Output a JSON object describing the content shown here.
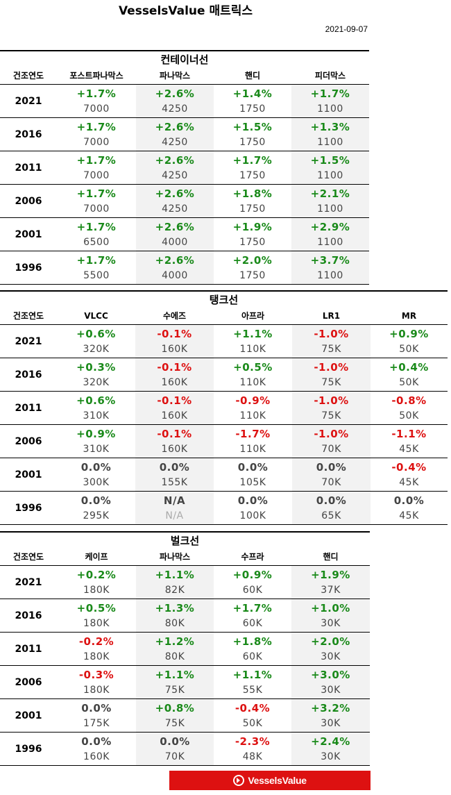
{
  "title": "VesselsValue 매트릭스",
  "date": "2021-09-07",
  "brand": "VesselsValue",
  "colors": {
    "positive": "#1a8a1a",
    "negative": "#dd1111",
    "neutral": "#444444",
    "brand": "#dd1111"
  },
  "sections": [
    {
      "title": "컨테이너선",
      "year_header": "건조연도",
      "columns": [
        "포스트파나막스",
        "파나막스",
        "핸디",
        "피더막스"
      ],
      "rows": [
        {
          "year": "2021",
          "cells": [
            {
              "change": "+1.7%",
              "value": "7000"
            },
            {
              "change": "+2.6%",
              "value": "4250"
            },
            {
              "change": "+1.4%",
              "value": "1750"
            },
            {
              "change": "+1.7%",
              "value": "1100"
            }
          ]
        },
        {
          "year": "2016",
          "cells": [
            {
              "change": "+1.7%",
              "value": "7000"
            },
            {
              "change": "+2.6%",
              "value": "4250"
            },
            {
              "change": "+1.5%",
              "value": "1750"
            },
            {
              "change": "+1.3%",
              "value": "1100"
            }
          ]
        },
        {
          "year": "2011",
          "cells": [
            {
              "change": "+1.7%",
              "value": "7000"
            },
            {
              "change": "+2.6%",
              "value": "4250"
            },
            {
              "change": "+1.7%",
              "value": "1750"
            },
            {
              "change": "+1.5%",
              "value": "1100"
            }
          ]
        },
        {
          "year": "2006",
          "cells": [
            {
              "change": "+1.7%",
              "value": "7000"
            },
            {
              "change": "+2.6%",
              "value": "4250"
            },
            {
              "change": "+1.8%",
              "value": "1750"
            },
            {
              "change": "+2.1%",
              "value": "1100"
            }
          ]
        },
        {
          "year": "2001",
          "cells": [
            {
              "change": "+1.7%",
              "value": "6500"
            },
            {
              "change": "+2.6%",
              "value": "4000"
            },
            {
              "change": "+1.9%",
              "value": "1750"
            },
            {
              "change": "+2.9%",
              "value": "1100"
            }
          ]
        },
        {
          "year": "1996",
          "cells": [
            {
              "change": "+1.7%",
              "value": "5500"
            },
            {
              "change": "+2.6%",
              "value": "4000"
            },
            {
              "change": "+2.0%",
              "value": "1750"
            },
            {
              "change": "+3.7%",
              "value": "1100"
            }
          ]
        }
      ]
    },
    {
      "title": "탱크선",
      "year_header": "건조연도",
      "columns": [
        "VLCC",
        "수에즈",
        "아프라",
        "LR1",
        "MR"
      ],
      "rows": [
        {
          "year": "2021",
          "cells": [
            {
              "change": "+0.6%",
              "value": "320K"
            },
            {
              "change": "-0.1%",
              "value": "160K"
            },
            {
              "change": "+1.1%",
              "value": "110K"
            },
            {
              "change": "-1.0%",
              "value": "75K"
            },
            {
              "change": "+0.9%",
              "value": "50K"
            }
          ]
        },
        {
          "year": "2016",
          "cells": [
            {
              "change": "+0.3%",
              "value": "320K"
            },
            {
              "change": "-0.1%",
              "value": "160K"
            },
            {
              "change": "+0.5%",
              "value": "110K"
            },
            {
              "change": "-1.0%",
              "value": "75K"
            },
            {
              "change": "+0.4%",
              "value": "50K"
            }
          ]
        },
        {
          "year": "2011",
          "cells": [
            {
              "change": "+0.6%",
              "value": "310K"
            },
            {
              "change": "-0.1%",
              "value": "160K"
            },
            {
              "change": "-0.9%",
              "value": "110K"
            },
            {
              "change": "-1.0%",
              "value": "75K"
            },
            {
              "change": "-0.8%",
              "value": "50K"
            }
          ]
        },
        {
          "year": "2006",
          "cells": [
            {
              "change": "+0.9%",
              "value": "310K"
            },
            {
              "change": "-0.1%",
              "value": "160K"
            },
            {
              "change": "-1.7%",
              "value": "110K"
            },
            {
              "change": "-1.0%",
              "value": "70K"
            },
            {
              "change": "-1.1%",
              "value": "45K"
            }
          ]
        },
        {
          "year": "2001",
          "cells": [
            {
              "change": "0.0%",
              "value": "300K"
            },
            {
              "change": "0.0%",
              "value": "155K"
            },
            {
              "change": "0.0%",
              "value": "105K"
            },
            {
              "change": "0.0%",
              "value": "70K"
            },
            {
              "change": "-0.4%",
              "value": "45K"
            }
          ]
        },
        {
          "year": "1996",
          "cells": [
            {
              "change": "0.0%",
              "value": "295K"
            },
            {
              "change": "N/A",
              "value": "N/A"
            },
            {
              "change": "0.0%",
              "value": "100K"
            },
            {
              "change": "0.0%",
              "value": "65K"
            },
            {
              "change": "0.0%",
              "value": "45K"
            }
          ]
        }
      ]
    },
    {
      "title": "벌크선",
      "year_header": "건조연도",
      "columns": [
        "케이프",
        "파나막스",
        "수프라",
        "핸디"
      ],
      "rows": [
        {
          "year": "2021",
          "cells": [
            {
              "change": "+0.2%",
              "value": "180K"
            },
            {
              "change": "+1.1%",
              "value": "82K"
            },
            {
              "change": "+0.9%",
              "value": "60K"
            },
            {
              "change": "+1.9%",
              "value": "37K"
            }
          ]
        },
        {
          "year": "2016",
          "cells": [
            {
              "change": "+0.5%",
              "value": "180K"
            },
            {
              "change": "+1.3%",
              "value": "80K"
            },
            {
              "change": "+1.7%",
              "value": "60K"
            },
            {
              "change": "+1.0%",
              "value": "30K"
            }
          ]
        },
        {
          "year": "2011",
          "cells": [
            {
              "change": "-0.2%",
              "value": "180K"
            },
            {
              "change": "+1.2%",
              "value": "80K"
            },
            {
              "change": "+1.8%",
              "value": "60K"
            },
            {
              "change": "+2.0%",
              "value": "30K"
            }
          ]
        },
        {
          "year": "2006",
          "cells": [
            {
              "change": "-0.3%",
              "value": "180K"
            },
            {
              "change": "+1.1%",
              "value": "75K"
            },
            {
              "change": "+1.1%",
              "value": "55K"
            },
            {
              "change": "+3.0%",
              "value": "30K"
            }
          ]
        },
        {
          "year": "2001",
          "cells": [
            {
              "change": "0.0%",
              "value": "175K"
            },
            {
              "change": "+0.8%",
              "value": "75K"
            },
            {
              "change": "-0.4%",
              "value": "50K"
            },
            {
              "change": "+3.2%",
              "value": "30K"
            }
          ]
        },
        {
          "year": "1996",
          "cells": [
            {
              "change": "0.0%",
              "value": "160K"
            },
            {
              "change": "0.0%",
              "value": "70K"
            },
            {
              "change": "-2.3%",
              "value": "48K"
            },
            {
              "change": "+2.4%",
              "value": "30K"
            }
          ]
        }
      ]
    }
  ]
}
